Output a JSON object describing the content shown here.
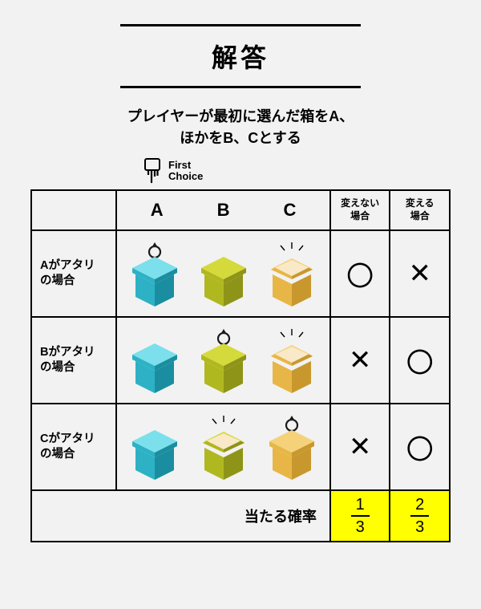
{
  "header": {
    "title": "解答",
    "subtitle_l1": "プレイヤーが最初に選んだ箱をA、",
    "subtitle_l2": "ほかをB、Cとする",
    "first_choice_l1": "First",
    "first_choice_l2": "Choice"
  },
  "columns": {
    "abc": [
      "A",
      "B",
      "C"
    ],
    "no_switch": "変えない",
    "switch": "変える",
    "case_suffix": "場合"
  },
  "rows": [
    {
      "label_l1": "Aがアタリ",
      "label_l2": "の場合",
      "boxes": [
        {
          "color": "blue",
          "ring": true,
          "open": false
        },
        {
          "color": "green",
          "ring": false,
          "open": false
        },
        {
          "color": "orange",
          "ring": false,
          "open": true
        }
      ],
      "no_switch": "〇",
      "switch": "✕"
    },
    {
      "label_l1": "Bがアタリ",
      "label_l2": "の場合",
      "boxes": [
        {
          "color": "blue",
          "ring": false,
          "open": false
        },
        {
          "color": "green",
          "ring": true,
          "open": false
        },
        {
          "color": "orange",
          "ring": false,
          "open": true
        }
      ],
      "no_switch": "✕",
      "switch": "〇"
    },
    {
      "label_l1": "Cがアタリ",
      "label_l2": "の場合",
      "boxes": [
        {
          "color": "blue",
          "ring": false,
          "open": false
        },
        {
          "color": "green",
          "ring": false,
          "open": true
        },
        {
          "color": "orange",
          "ring": true,
          "open": false
        }
      ],
      "no_switch": "✕",
      "switch": "〇"
    }
  ],
  "footer": {
    "label": "当たる確率",
    "no_switch": {
      "num": "1",
      "den": "3"
    },
    "switch": {
      "num": "2",
      "den": "3"
    }
  },
  "colors": {
    "blue": {
      "top": "#7be0ec",
      "left": "#2db1c5",
      "right": "#1a8ea0"
    },
    "green": {
      "top": "#d4da3b",
      "left": "#b0b820",
      "right": "#8e9417"
    },
    "orange": {
      "top": "#f5d27a",
      "left": "#e8b646",
      "right": "#c8982f"
    },
    "lid_inner": "#f9e9c8",
    "ring": "#1a1a1a",
    "highlight": "#ffff00",
    "rule": "#000000",
    "bg": "#f2f2f2"
  },
  "style": {
    "title_fontsize": 32,
    "subtitle_fontsize": 18,
    "mark_fontsize": 34,
    "box_svg_w": 64,
    "box_svg_h": 84
  }
}
